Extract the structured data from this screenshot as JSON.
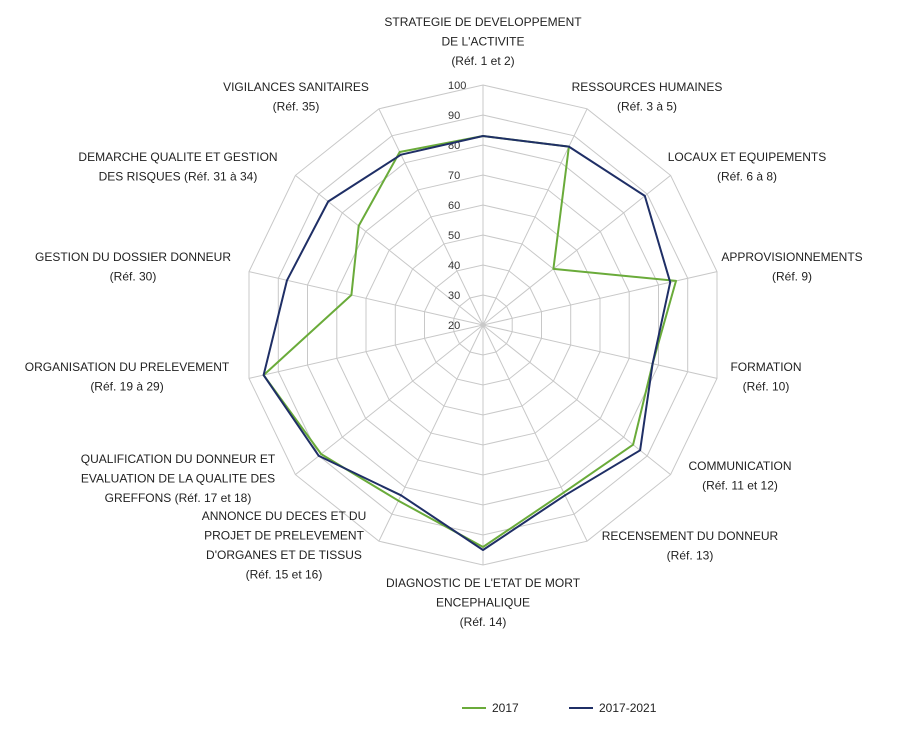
{
  "chart_data": {
    "type": "radar",
    "title": "",
    "rlim": [
      20,
      100
    ],
    "ticks": [
      20,
      30,
      40,
      50,
      60,
      70,
      80,
      90,
      100
    ],
    "grid": true,
    "legend_position": "bottom",
    "categories": [
      [
        "STRATEGIE DE DEVELOPPEMENT",
        "DE L'ACTIVITE",
        "(Réf. 1 et 2)"
      ],
      [
        "RESSOURCES HUMAINES",
        "(Réf. 3 à 5)"
      ],
      [
        "LOCAUX ET EQUIPEMENTS",
        "(Réf. 6 à 8)"
      ],
      [
        "APPROVISIONNEMENTS",
        "(Réf. 9)"
      ],
      [
        "FORMATION",
        "(Réf. 10)"
      ],
      [
        "COMMUNICATION",
        "(Réf. 11 et 12)"
      ],
      [
        "RECENSEMENT DU DONNEUR",
        "(Réf. 13)"
      ],
      [
        "DIAGNOSTIC DE L'ETAT DE MORT",
        "ENCEPHALIQUE",
        "(Réf. 14)"
      ],
      [
        "ANNONCE DU DECES ET DU",
        "PROJET DE PRELEVEMENT",
        "D'ORGANES ET DE TISSUS",
        "(Réf. 15 et 16)"
      ],
      [
        "QUALIFICATION DU DONNEUR ET",
        "EVALUATION DE LA QUALITE DES",
        "GREFFONS (Réf. 17 et 18)"
      ],
      [
        "ORGANISATION DU PRELEVEMENT",
        "(Réf. 19 à 29)"
      ],
      [
        "GESTION DU DOSSIER DONNEUR",
        "(Réf. 30)"
      ],
      [
        "DEMARCHE QUALITE ET GESTION",
        "DES RISQUES (Réf. 31 à 34)"
      ],
      [
        "VIGILANCES SANITAIRES",
        "(Réf. 35)"
      ]
    ],
    "series": [
      {
        "name": "2017",
        "color": "#6aab3a",
        "values": [
          83,
          86,
          50,
          86,
          78,
          84,
          82,
          94,
          85,
          89,
          95,
          65,
          73,
          84
        ]
      },
      {
        "name": "2017-2021",
        "color": "#1f2f66",
        "values": [
          83,
          86,
          89,
          84,
          78,
          87,
          83,
          95,
          83,
          90,
          95,
          87,
          86,
          83
        ]
      }
    ]
  }
}
